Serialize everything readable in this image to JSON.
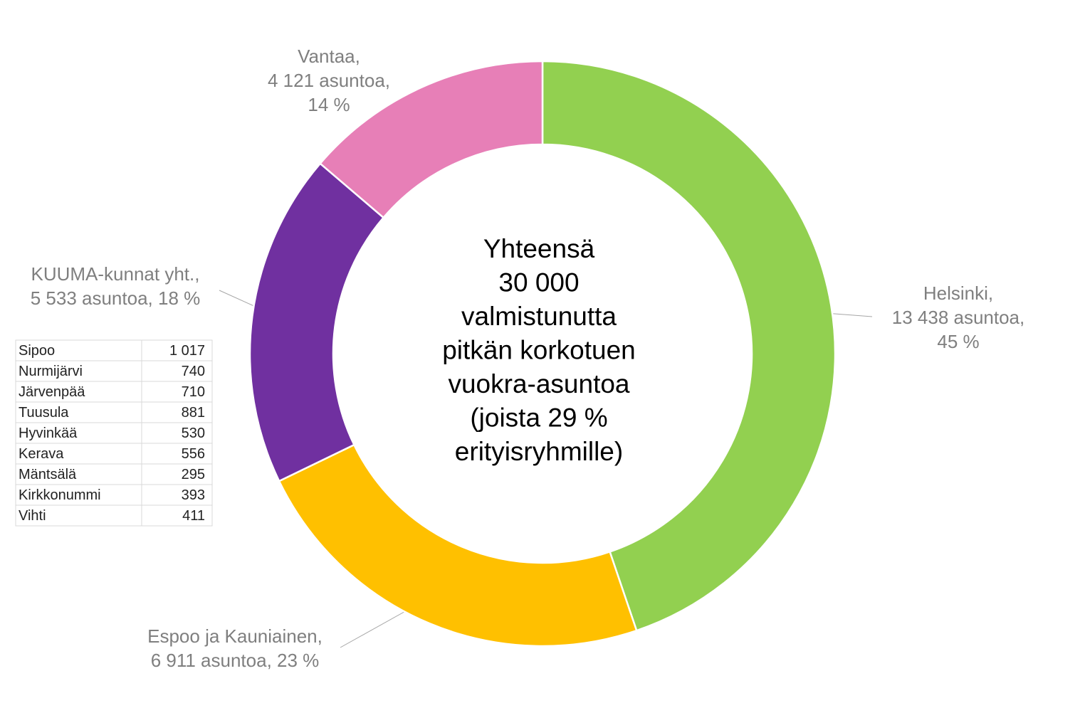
{
  "chart_data": {
    "type": "donut",
    "categories": [
      "Helsinki,",
      "Espoo ja Kauniainen,",
      "KUUMA-kunnat yht.,",
      "Vantaa,"
    ],
    "values": [
      13438,
      6911,
      5533,
      4121
    ],
    "value_labels": [
      "13 438 asuntoa,",
      "6 911 asuntoa,",
      "5 533 asuntoa,",
      "4 121 asuntoa,"
    ],
    "percent_labels": [
      "45 %",
      "23 %",
      "18 %",
      "14 %"
    ],
    "colors": [
      "#92d050",
      "#ffc000",
      "#7030a0",
      "#e77fb7"
    ],
    "center_text": [
      "Yhteensä",
      "30 000",
      "valmistunutta",
      "pitkän korkotuen",
      "vuokra-asuntoa",
      "(joista 29 %",
      "erityisryhmille)"
    ]
  },
  "table": {
    "rows": [
      [
        "Sipoo",
        "1 017"
      ],
      [
        "Nurmijärvi",
        "740"
      ],
      [
        "Järvenpää",
        "710"
      ],
      [
        "Tuusula",
        "881"
      ],
      [
        "Hyvinkää",
        "530"
      ],
      [
        "Kerava",
        "556"
      ],
      [
        "Mäntsälä",
        "295"
      ],
      [
        "Kirkkonummi",
        "393"
      ],
      [
        "Vihti",
        "411"
      ]
    ]
  }
}
